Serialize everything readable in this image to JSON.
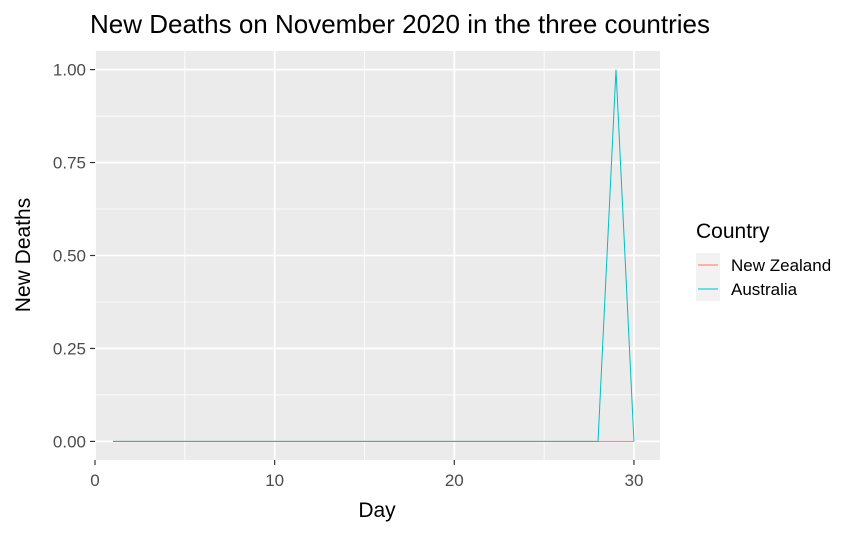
{
  "chart_data": {
    "type": "line",
    "title": "New Deaths on November 2020 in the three countries",
    "xlabel": "Day",
    "ylabel": "New Deaths",
    "xlim": [
      0,
      31.45
    ],
    "ylim": [
      -0.05,
      1.05
    ],
    "x_ticks": [
      0,
      10,
      20,
      30
    ],
    "x_minor_ticks": [
      5,
      15,
      25
    ],
    "y_ticks": [
      0,
      0.25,
      0.5,
      0.75,
      1
    ],
    "y_tick_labels": [
      "0.00",
      "0.25",
      "0.50",
      "0.75",
      "1.00"
    ],
    "y_minor_ticks": [
      0.125,
      0.375,
      0.625,
      0.875
    ],
    "grid": true,
    "legend_position": "right",
    "legend_title": "Country",
    "series": [
      {
        "name": "New Zealand",
        "color": "#F8766D",
        "x": [
          1,
          2,
          3,
          4,
          5,
          6,
          7,
          8,
          9,
          10,
          11,
          12,
          13,
          14,
          15,
          16,
          17,
          18,
          19,
          20,
          21,
          22,
          23,
          24,
          25,
          26,
          27,
          28,
          29,
          30
        ],
        "values": [
          0,
          0,
          0,
          0,
          0,
          0,
          0,
          0,
          0,
          0,
          0,
          0,
          0,
          0,
          0,
          0,
          0,
          0,
          0,
          0,
          0,
          0,
          0,
          0,
          0,
          0,
          0,
          0,
          0,
          0
        ]
      },
      {
        "name": "Australia",
        "color": "#00BFC4",
        "x": [
          1,
          2,
          3,
          4,
          5,
          6,
          7,
          8,
          9,
          10,
          11,
          12,
          13,
          14,
          15,
          16,
          17,
          18,
          19,
          20,
          21,
          22,
          23,
          24,
          25,
          26,
          27,
          28,
          29,
          30
        ],
        "values": [
          0,
          0,
          0,
          0,
          0,
          0,
          0,
          0,
          0,
          0,
          0,
          0,
          0,
          0,
          0,
          0,
          0,
          0,
          0,
          0,
          0,
          0,
          0,
          0,
          0,
          0,
          0,
          0,
          1,
          0
        ]
      }
    ]
  }
}
